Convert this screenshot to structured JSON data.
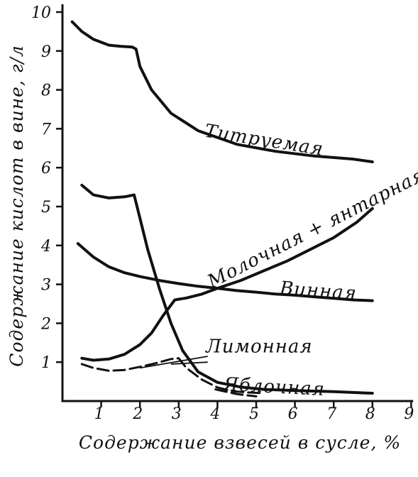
{
  "chart_data": {
    "type": "line",
    "xlabel": "Содержание взвесей в сусле, %",
    "ylabel": "Содержание кислот в вине, г/л",
    "xlim": [
      0,
      9
    ],
    "ylim": [
      0,
      10
    ],
    "x_ticks": [
      "1",
      "2",
      "3",
      "4",
      "5",
      "6",
      "7",
      "8",
      "9"
    ],
    "y_ticks": [
      "1",
      "2",
      "3",
      "4",
      "5",
      "6",
      "7",
      "8",
      "9",
      "10"
    ],
    "grid": false,
    "legend": "none",
    "series": [
      {
        "name": "Титруемая",
        "points": [
          [
            0.25,
            9.75
          ],
          [
            0.5,
            9.5
          ],
          [
            0.8,
            9.3
          ],
          [
            1.2,
            9.15
          ],
          [
            1.5,
            9.12
          ],
          [
            1.8,
            9.1
          ],
          [
            1.9,
            9.05
          ],
          [
            2.0,
            8.6
          ],
          [
            2.3,
            8.0
          ],
          [
            2.8,
            7.4
          ],
          [
            3.5,
            6.95
          ],
          [
            4.5,
            6.6
          ],
          [
            5.5,
            6.42
          ],
          [
            6.5,
            6.3
          ],
          [
            7.5,
            6.22
          ],
          [
            8.0,
            6.15
          ]
        ]
      },
      {
        "name": "Молочная + янтарная",
        "points": [
          [
            0.5,
            1.1
          ],
          [
            0.8,
            1.05
          ],
          [
            1.2,
            1.08
          ],
          [
            1.6,
            1.2
          ],
          [
            2.0,
            1.45
          ],
          [
            2.3,
            1.75
          ],
          [
            2.6,
            2.2
          ],
          [
            2.9,
            2.6
          ],
          [
            3.2,
            2.65
          ],
          [
            3.6,
            2.75
          ],
          [
            4.0,
            2.9
          ],
          [
            4.6,
            3.1
          ],
          [
            5.2,
            3.35
          ],
          [
            5.8,
            3.6
          ],
          [
            6.4,
            3.9
          ],
          [
            7.0,
            4.2
          ],
          [
            7.6,
            4.6
          ],
          [
            8.0,
            4.95
          ]
        ]
      },
      {
        "name": "Винная",
        "points": [
          [
            0.4,
            4.05
          ],
          [
            0.8,
            3.7
          ],
          [
            1.2,
            3.45
          ],
          [
            1.6,
            3.3
          ],
          [
            2.0,
            3.2
          ],
          [
            2.5,
            3.1
          ],
          [
            3.0,
            3.02
          ],
          [
            3.5,
            2.95
          ],
          [
            4.0,
            2.9
          ],
          [
            4.5,
            2.84
          ],
          [
            5.0,
            2.8
          ],
          [
            5.5,
            2.75
          ],
          [
            6.0,
            2.72
          ],
          [
            6.5,
            2.68
          ],
          [
            7.0,
            2.64
          ],
          [
            7.5,
            2.6
          ],
          [
            8.0,
            2.58
          ]
        ]
      },
      {
        "name": "Лимонная",
        "points": [
          [
            0.5,
            0.95
          ],
          [
            0.8,
            0.85
          ],
          [
            1.2,
            0.78
          ],
          [
            1.6,
            0.8
          ],
          [
            2.0,
            0.88
          ],
          [
            2.4,
            0.97
          ],
          [
            2.8,
            1.08
          ],
          [
            3.0,
            1.1
          ],
          [
            3.2,
            0.85
          ],
          [
            3.6,
            0.55
          ],
          [
            4.0,
            0.35
          ],
          [
            4.4,
            0.25
          ],
          [
            4.8,
            0.22
          ],
          [
            5.2,
            0.2
          ]
        ]
      },
      {
        "name": "Яблочная",
        "points": [
          [
            0.5,
            5.55
          ],
          [
            0.8,
            5.3
          ],
          [
            1.2,
            5.22
          ],
          [
            1.6,
            5.25
          ],
          [
            1.85,
            5.3
          ],
          [
            2.0,
            4.7
          ],
          [
            2.2,
            3.9
          ],
          [
            2.5,
            2.9
          ],
          [
            2.8,
            2.0
          ],
          [
            3.1,
            1.3
          ],
          [
            3.5,
            0.75
          ],
          [
            4.0,
            0.48
          ],
          [
            4.6,
            0.36
          ],
          [
            5.2,
            0.3
          ],
          [
            6.0,
            0.27
          ],
          [
            7.0,
            0.24
          ],
          [
            8.0,
            0.2
          ]
        ]
      }
    ]
  }
}
